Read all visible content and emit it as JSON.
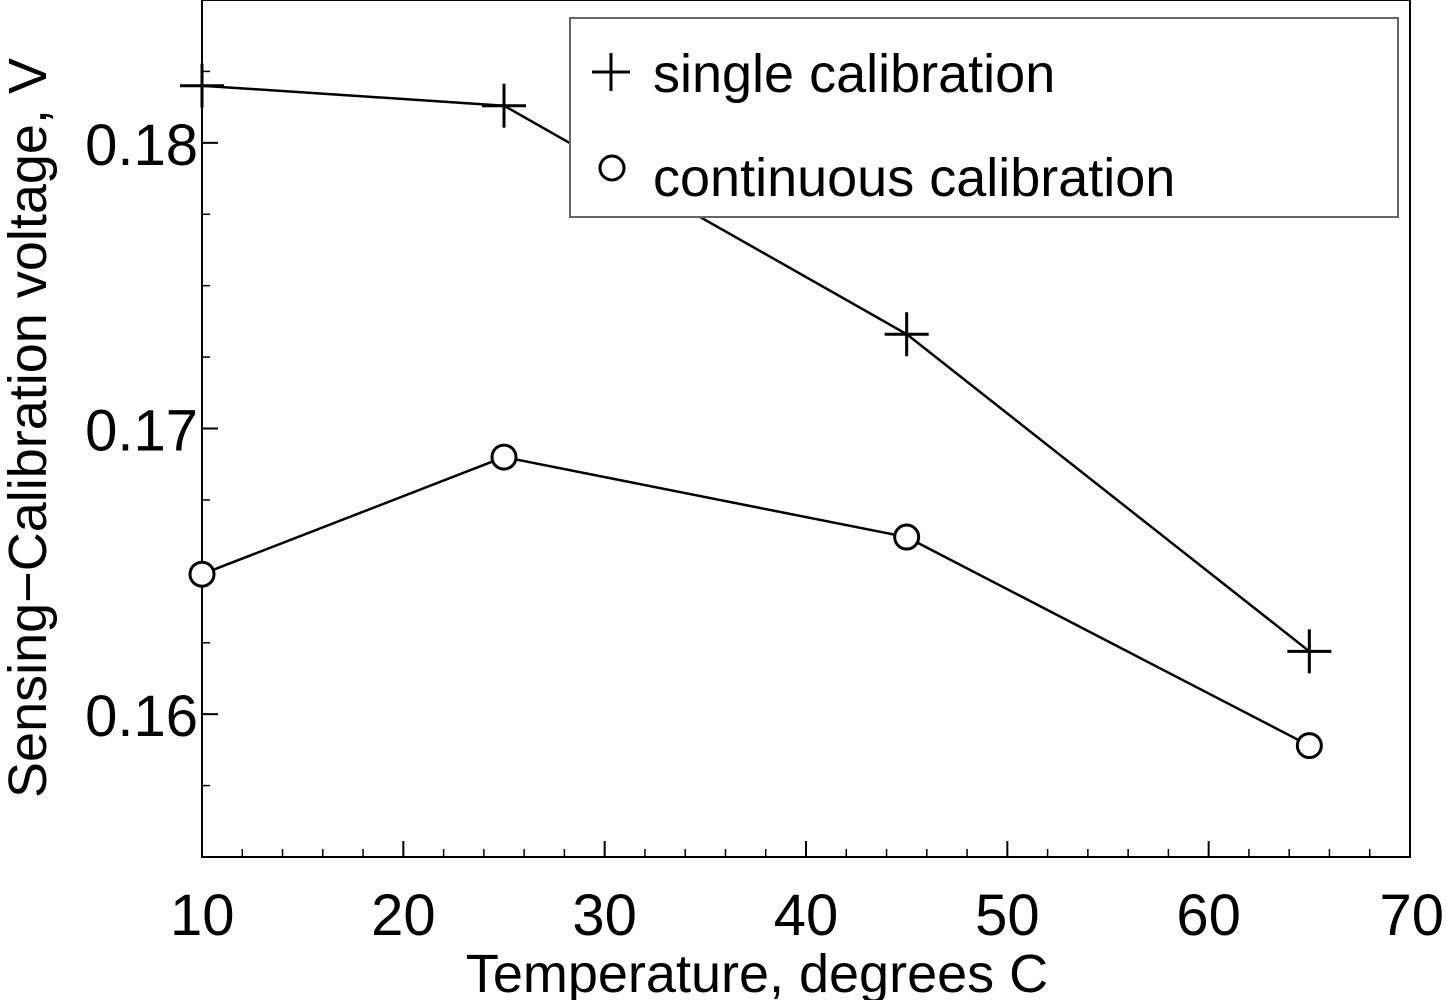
{
  "chart_data": {
    "type": "line",
    "title": "",
    "xlabel": "Temperature, degrees C",
    "ylabel": "Sensing−Calibration voltage, V",
    "xlim": [
      10,
      70
    ],
    "ylim": [
      0.155,
      0.185
    ],
    "xticks": [
      10,
      20,
      30,
      40,
      50,
      60,
      70
    ],
    "xtick_labels": [
      "10",
      "20",
      "30",
      "40",
      "50",
      "60",
      "70"
    ],
    "yticks": [
      0.16,
      0.17,
      0.18
    ],
    "ytick_labels": [
      "0.16",
      "0.17",
      "0.18"
    ],
    "grid": false,
    "legend_position": "top-right",
    "series": [
      {
        "name": "single calibration",
        "marker": "plus",
        "x": [
          10,
          25,
          45,
          65
        ],
        "y": [
          0.182,
          0.1813,
          0.1733,
          0.1622
        ]
      },
      {
        "name": "continuous calibration",
        "marker": "circle",
        "x": [
          10,
          25,
          45,
          65
        ],
        "y": [
          0.1649,
          0.169,
          0.1662,
          0.1589
        ]
      }
    ]
  }
}
